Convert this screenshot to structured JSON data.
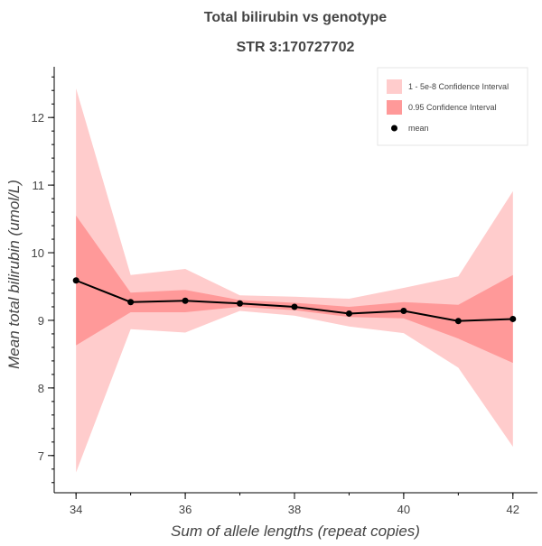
{
  "chart_data": {
    "type": "line",
    "title": "Total bilirubin vs genotype",
    "subtitle": "STR 3:170727702",
    "xlabel": "Sum of allele lengths (repeat copies)",
    "ylabel": "Mean total bilirubin (umol/L)",
    "xlim": [
      33.6,
      42.45
    ],
    "ylim": [
      6.45,
      12.75
    ],
    "x_ticks": [
      34,
      36,
      38,
      40,
      42
    ],
    "y_ticks": [
      7,
      8,
      9,
      10,
      11,
      12
    ],
    "grid": false,
    "legend_position": "top-right",
    "x": [
      34,
      35,
      36,
      37,
      38,
      39,
      40,
      41,
      42
    ],
    "series": [
      {
        "name": "1 - 5e-8 Confidence Interval",
        "kind": "band",
        "color": "#ffcccc",
        "lower": [
          6.75,
          8.87,
          8.82,
          9.14,
          9.07,
          8.91,
          8.81,
          8.3,
          7.13
        ],
        "upper": [
          12.43,
          9.67,
          9.76,
          9.37,
          9.35,
          9.32,
          9.48,
          9.65,
          10.91
        ]
      },
      {
        "name": "0.95 Confidence Interval",
        "kind": "band",
        "color": "#ff9999",
        "lower": [
          8.63,
          9.12,
          9.12,
          9.2,
          9.15,
          9.05,
          9.03,
          8.73,
          8.37
        ],
        "upper": [
          10.55,
          9.41,
          9.45,
          9.3,
          9.26,
          9.2,
          9.27,
          9.23,
          9.67
        ]
      },
      {
        "name": "mean",
        "kind": "line",
        "color": "#000000",
        "values": [
          9.59,
          9.27,
          9.29,
          9.25,
          9.2,
          9.1,
          9.14,
          8.99,
          9.02
        ]
      }
    ]
  }
}
